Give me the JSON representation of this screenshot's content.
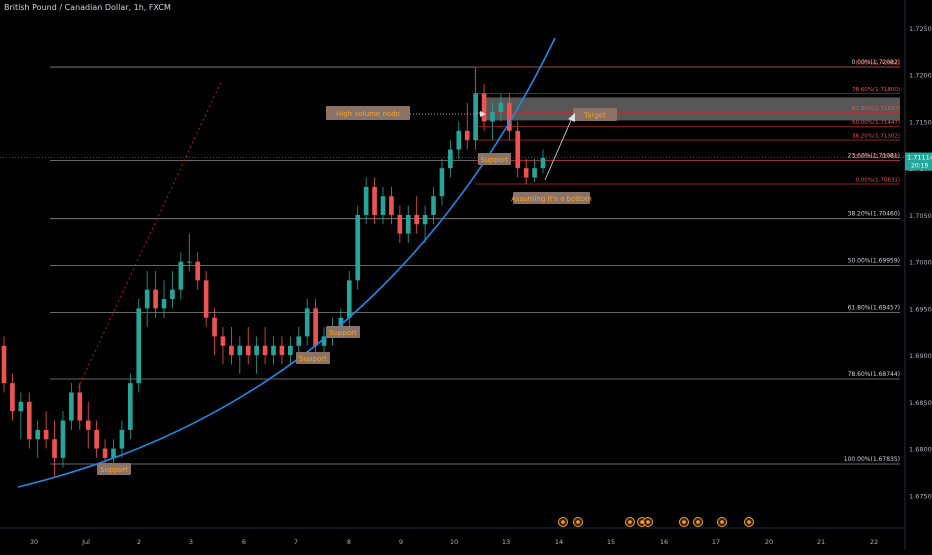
{
  "header": {
    "title": "British Pound / Canadian Dollar, 1h, FXCM"
  },
  "price_tag": {
    "value": "1.71114",
    "countdown": "20:19"
  },
  "colors": {
    "up": "#26a69a",
    "down": "#ef5350",
    "curve": "#1e88e5",
    "grid": "#707070",
    "fib_short": "#c62828",
    "label_bg": "#8b7266",
    "label_text": "#f5a623",
    "current": "#26a69a"
  },
  "chart_data": {
    "type": "candlestick",
    "title": "British Pound / Canadian Dollar, 1h, FXCM",
    "xlabel": "",
    "ylabel": "",
    "ylim": [
      1.6715,
      1.7265
    ],
    "y_ticks": [
      "1.67500",
      "1.68000",
      "1.68500",
      "1.69000",
      "1.69500",
      "1.70000",
      "1.70500",
      "1.71000",
      "1.71500",
      "1.72000",
      "1.72500"
    ],
    "x_ticks": [
      "30",
      "Jul",
      "2",
      "3",
      "6",
      "7",
      "8",
      "9",
      "10",
      "13",
      "14",
      "15",
      "16",
      "17",
      "20",
      "21",
      "22"
    ],
    "fib_long": [
      {
        "level": "0.0%",
        "price": 1.72082,
        "label": "0.00%(1.72082)"
      },
      {
        "level": "23.6%",
        "price": 1.71081,
        "label": "23.60%(1.71081)"
      },
      {
        "level": "38.2%",
        "price": 1.7046,
        "label": "38.20%(1.70460)"
      },
      {
        "level": "50.0%",
        "price": 1.69959,
        "label": "50.00%(1.69959)"
      },
      {
        "level": "61.8%",
        "price": 1.69457,
        "label": "61.80%(1.69457)"
      },
      {
        "level": "78.6%",
        "price": 1.68744,
        "label": "78.60%(1.68744)"
      },
      {
        "level": "100.0%",
        "price": 1.67835,
        "label": "100.00%(1.67835)"
      }
    ],
    "fib_short": [
      {
        "level": "0.0%",
        "price": 1.72082,
        "label": "0.00%(1.72082)"
      },
      {
        "level": "78.6%",
        "price": 1.718,
        "label": "78.60%(1.71800)"
      },
      {
        "level": "61.8%",
        "price": 1.71597,
        "label": "61.80%(1.71597)"
      },
      {
        "level": "50.0%",
        "price": 1.71447,
        "label": "50.00%(1.71447)"
      },
      {
        "level": "38.2%",
        "price": 1.71302,
        "label": "38.20%(1.71302)"
      },
      {
        "level": "23.6%",
        "price": 1.7108,
        "label": "23.60%(1.71080)"
      },
      {
        "level": "0.0%",
        "price": 1.70831,
        "label": "0.00%(1.70831)"
      }
    ],
    "annotations": [
      {
        "text": "High volume node",
        "kind": "label"
      },
      {
        "text": "Target",
        "kind": "label"
      },
      {
        "text": "Support",
        "kind": "label"
      },
      {
        "text": "Assuming it's a bottom",
        "kind": "label"
      },
      {
        "text": "Support",
        "kind": "label"
      },
      {
        "text": "Support",
        "kind": "label"
      },
      {
        "text": "Support",
        "kind": "label"
      }
    ],
    "current_price": 1.71114,
    "candles": [
      [
        0.0,
        1.691,
        1.692,
        1.686,
        1.687
      ],
      [
        1.0,
        1.687,
        1.688,
        1.683,
        1.684
      ],
      [
        2.0,
        1.684,
        1.686,
        1.681,
        1.685
      ],
      [
        3.0,
        1.685,
        1.686,
        1.68,
        1.681
      ],
      [
        4.0,
        1.681,
        1.683,
        1.679,
        1.682
      ],
      [
        5.0,
        1.682,
        1.684,
        1.68,
        1.681
      ],
      [
        6.0,
        1.681,
        1.683,
        1.677,
        1.679
      ],
      [
        7.0,
        1.679,
        1.684,
        1.678,
        1.683
      ],
      [
        8.0,
        1.683,
        1.687,
        1.682,
        1.686
      ],
      [
        9.0,
        1.686,
        1.687,
        1.682,
        1.683
      ],
      [
        10.0,
        1.683,
        1.685,
        1.68,
        1.682
      ],
      [
        11.0,
        1.682,
        1.683,
        1.679,
        1.68
      ],
      [
        12.0,
        1.68,
        1.681,
        1.678,
        1.679
      ],
      [
        13.0,
        1.679,
        1.681,
        1.678,
        1.68
      ],
      [
        14.0,
        1.68,
        1.683,
        1.679,
        1.682
      ],
      [
        15.0,
        1.682,
        1.688,
        1.681,
        1.687
      ],
      [
        16.0,
        1.687,
        1.696,
        1.686,
        1.695
      ],
      [
        17.0,
        1.695,
        1.699,
        1.693,
        1.697
      ],
      [
        18.0,
        1.697,
        1.699,
        1.694,
        1.695
      ],
      [
        19.0,
        1.695,
        1.698,
        1.694,
        1.696
      ],
      [
        20.0,
        1.696,
        1.699,
        1.695,
        1.697
      ],
      [
        21.0,
        1.697,
        1.701,
        1.696,
        1.7
      ],
      [
        22.0,
        1.7,
        1.703,
        1.699,
        1.7
      ],
      [
        23.0,
        1.7,
        1.701,
        1.697,
        1.698
      ],
      [
        24.0,
        1.698,
        1.699,
        1.693,
        1.694
      ],
      [
        25.0,
        1.694,
        1.695,
        1.69,
        1.692
      ],
      [
        26.0,
        1.692,
        1.693,
        1.689,
        1.691
      ],
      [
        27.0,
        1.691,
        1.693,
        1.689,
        1.69
      ],
      [
        28.0,
        1.69,
        1.692,
        1.688,
        1.691
      ],
      [
        29.0,
        1.691,
        1.693,
        1.689,
        1.69
      ],
      [
        30.0,
        1.69,
        1.692,
        1.688,
        1.691
      ],
      [
        31.0,
        1.691,
        1.693,
        1.689,
        1.69
      ],
      [
        32.0,
        1.69,
        1.692,
        1.689,
        1.691
      ],
      [
        33.0,
        1.691,
        1.692,
        1.689,
        1.69
      ],
      [
        34.0,
        1.69,
        1.692,
        1.689,
        1.691
      ],
      [
        35.0,
        1.691,
        1.693,
        1.69,
        1.692
      ],
      [
        36.0,
        1.692,
        1.696,
        1.691,
        1.695
      ],
      [
        37.0,
        1.695,
        1.696,
        1.69,
        1.691
      ],
      [
        38.0,
        1.691,
        1.693,
        1.69,
        1.692
      ],
      [
        39.0,
        1.692,
        1.694,
        1.691,
        1.693
      ],
      [
        40.0,
        1.693,
        1.695,
        1.692,
        1.694
      ],
      [
        41.0,
        1.694,
        1.699,
        1.693,
        1.698
      ],
      [
        42.0,
        1.698,
        1.706,
        1.697,
        1.705
      ],
      [
        43.0,
        1.705,
        1.709,
        1.704,
        1.708
      ],
      [
        44.0,
        1.708,
        1.709,
        1.704,
        1.705
      ],
      [
        45.0,
        1.705,
        1.708,
        1.704,
        1.707
      ],
      [
        46.0,
        1.707,
        1.708,
        1.704,
        1.705
      ],
      [
        47.0,
        1.705,
        1.706,
        1.702,
        1.703
      ],
      [
        48.0,
        1.703,
        1.706,
        1.702,
        1.705
      ],
      [
        49.0,
        1.705,
        1.707,
        1.703,
        1.704
      ],
      [
        50.0,
        1.704,
        1.706,
        1.702,
        1.705
      ],
      [
        51.0,
        1.705,
        1.708,
        1.704,
        1.707
      ],
      [
        52.0,
        1.707,
        1.711,
        1.706,
        1.71
      ],
      [
        53.0,
        1.71,
        1.713,
        1.709,
        1.712
      ],
      [
        54.0,
        1.712,
        1.715,
        1.711,
        1.714
      ],
      [
        55.0,
        1.714,
        1.717,
        1.712,
        1.713
      ],
      [
        56.0,
        1.713,
        1.7208,
        1.712,
        1.718
      ],
      [
        57.0,
        1.718,
        1.719,
        1.714,
        1.715
      ],
      [
        58.0,
        1.715,
        1.717,
        1.713,
        1.716
      ],
      [
        59.0,
        1.716,
        1.718,
        1.715,
        1.717
      ],
      [
        60.0,
        1.717,
        1.718,
        1.713,
        1.714
      ],
      [
        61.0,
        1.714,
        1.715,
        1.709,
        1.71
      ],
      [
        62.0,
        1.71,
        1.711,
        1.7083,
        1.709
      ],
      [
        63.0,
        1.709,
        1.711,
        1.7085,
        1.71
      ],
      [
        64.0,
        1.71,
        1.712,
        1.7095,
        1.7111
      ]
    ]
  }
}
